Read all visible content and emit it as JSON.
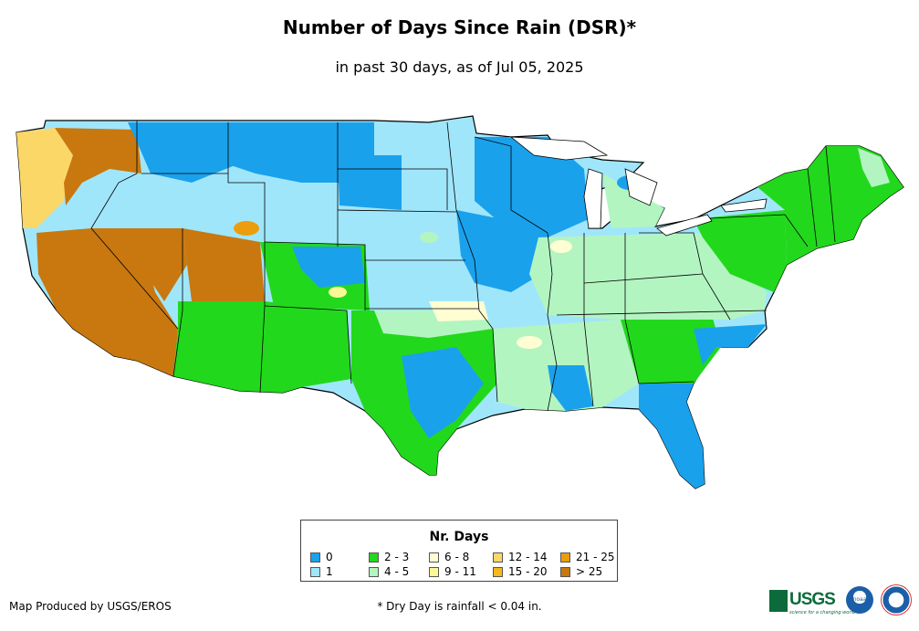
{
  "title": "Number of Days Since Rain (DSR)*",
  "subtitle": "in past 30 days, as of Jul 05, 2025",
  "legend": {
    "title": "Nr. Days",
    "items": [
      {
        "label": "0",
        "color": "#1aa1ec"
      },
      {
        "label": "1",
        "color": "#a0e6fb"
      },
      {
        "label": "2 - 3",
        "color": "#22d81c"
      },
      {
        "label": "4 - 5",
        "color": "#b3f5c1"
      },
      {
        "label": "6 - 8",
        "color": "#fffed2"
      },
      {
        "label": "9 - 11",
        "color": "#faf797"
      },
      {
        "label": "12 - 14",
        "color": "#fbd768"
      },
      {
        "label": "15 - 20",
        "color": "#f5b81a"
      },
      {
        "label": "21 - 25",
        "color": "#ec9d0d"
      },
      {
        "label": "> 25",
        "color": "#c8780f"
      }
    ]
  },
  "credit": "Map Produced by USGS/EROS",
  "footnote": "* Dry Day is rainfall < 0.04 in.",
  "logos": {
    "usgs": "USGS",
    "usgs_tagline": "science for a changing world",
    "noaa": "noaa",
    "nws": "national-weather-service-logo"
  }
}
